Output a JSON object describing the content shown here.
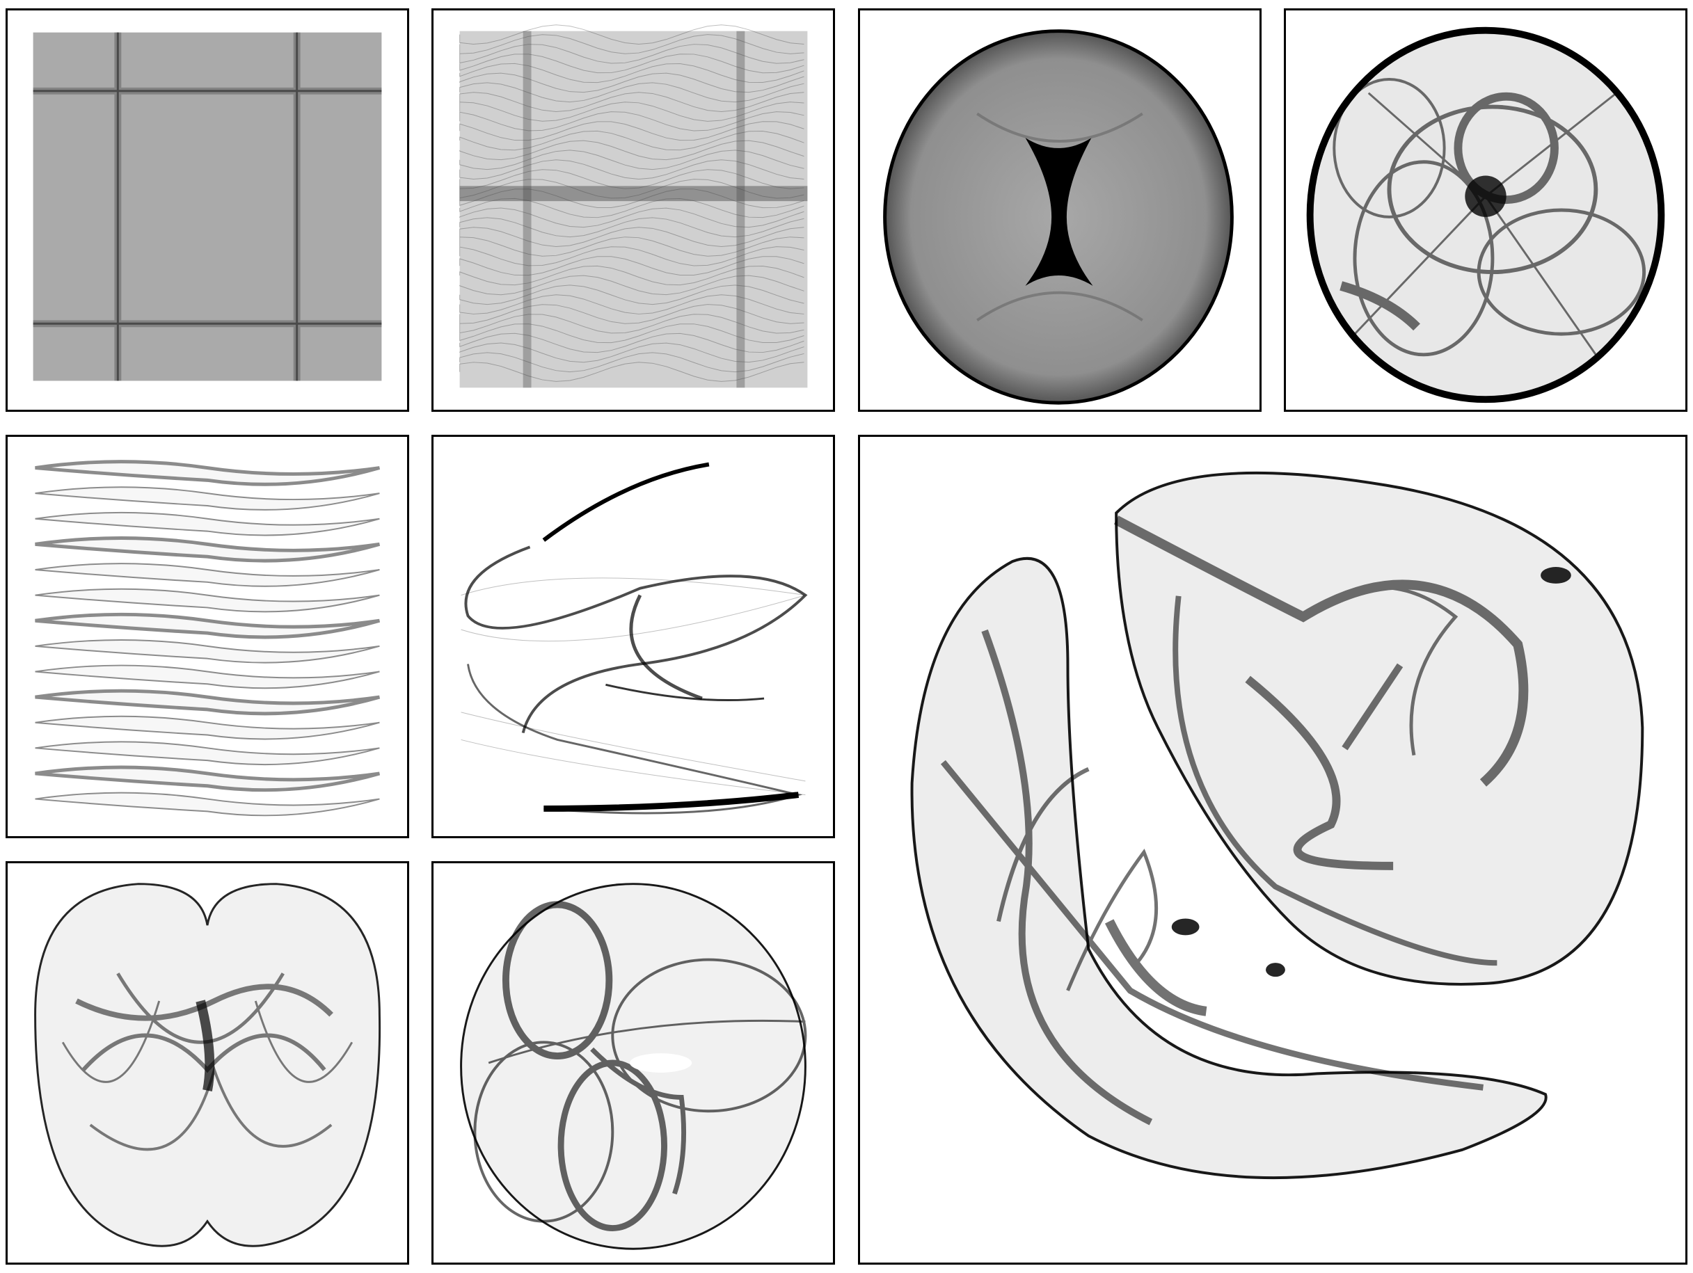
{
  "figure": {
    "panels": [
      {
        "id": "p1",
        "subject": "square-grid-attractor"
      },
      {
        "id": "p2",
        "subject": "vertical-wave-attractor"
      },
      {
        "id": "p3",
        "subject": "disc-hourglass-attractor"
      },
      {
        "id": "p4",
        "subject": "disc-petal-attractor"
      },
      {
        "id": "p5",
        "subject": "stacked-ribbon-attractor"
      },
      {
        "id": "p6",
        "subject": "s-spiral-attractor"
      },
      {
        "id": "p7",
        "subject": "twin-lobe-attractor"
      },
      {
        "id": "p8",
        "subject": "torus-knot-attractor"
      },
      {
        "id": "p9",
        "subject": "crescent-ribbon-attractor"
      }
    ],
    "colors": {
      "ink": "#000000",
      "paper": "#ffffff",
      "border": "#000000"
    }
  }
}
